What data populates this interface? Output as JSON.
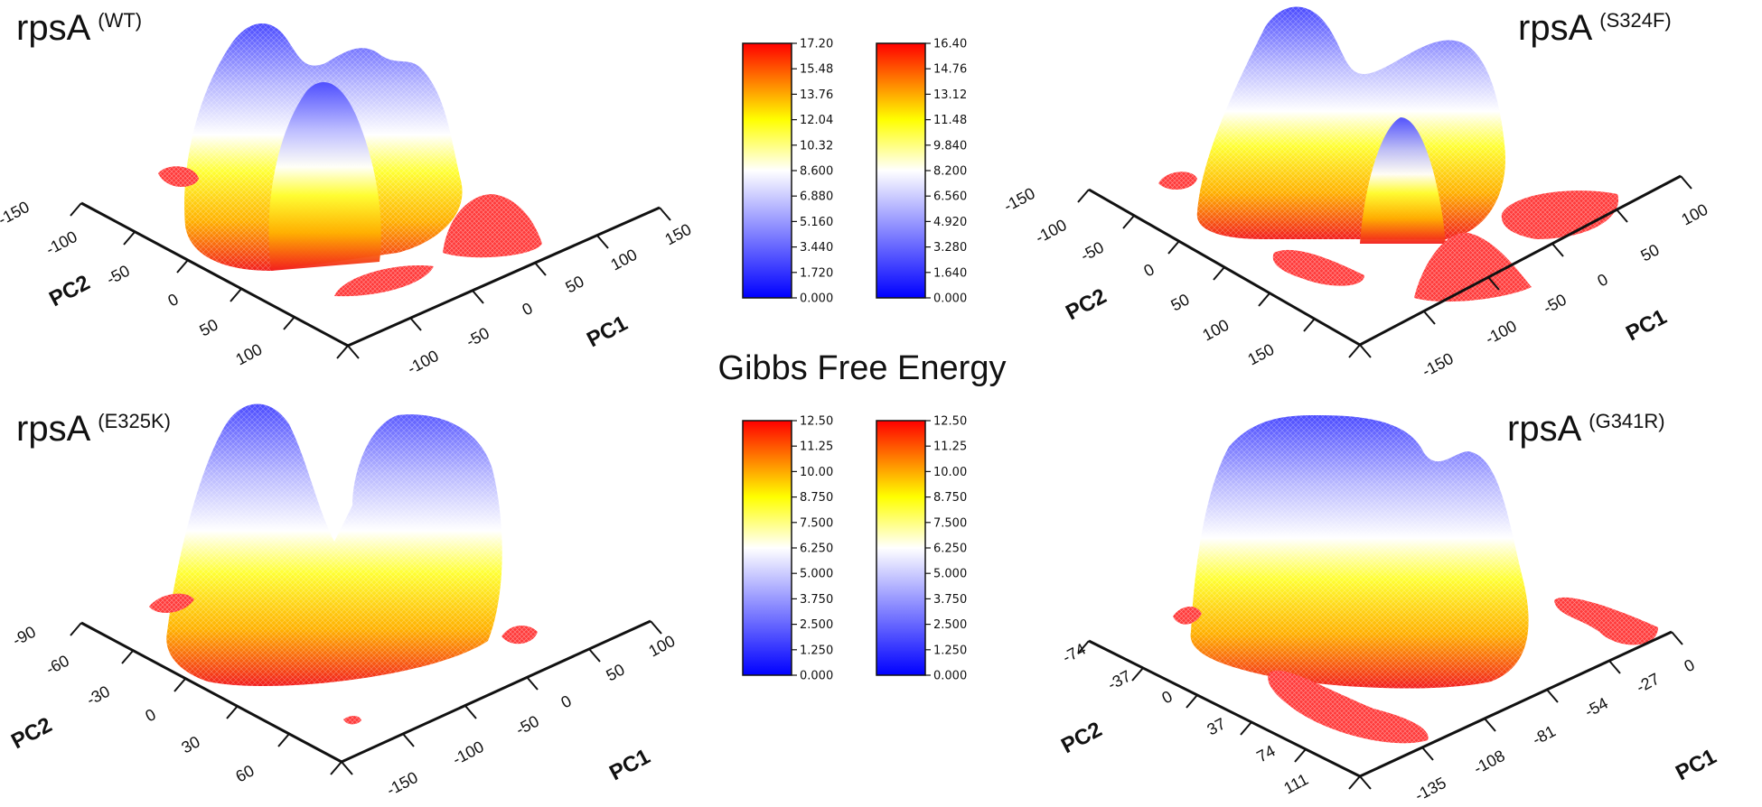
{
  "figure": {
    "center_title": "Gibbs Free Energy",
    "colors": {
      "low": "#0000ff",
      "mid_low": "#ffffff",
      "mid": "#ffff00",
      "high": "#ff0000",
      "axis": "#111111"
    }
  },
  "chart_data": [
    {
      "type": "surface-3d",
      "name": "rpsA",
      "sup": "(WT)",
      "xlabel": "PC1",
      "ylabel": "PC2",
      "x_ticks": [
        "-100",
        "-50",
        "0",
        "50",
        "100",
        "150"
      ],
      "y_ticks": [
        "-150",
        "-100",
        "-50",
        "0",
        "50",
        "100"
      ],
      "surface_peaks": [
        {
          "pc1": -60,
          "pc2": -90,
          "height": 17.2
        },
        {
          "pc1": 0,
          "pc2": -20,
          "height": 14.0
        },
        {
          "pc1": 60,
          "pc2": -60,
          "height": 13.5
        },
        {
          "pc1": 40,
          "pc2": 60,
          "height": 3.5
        }
      ]
    },
    {
      "type": "surface-3d",
      "name": "rpsA",
      "sup": "(S324F)",
      "xlabel": "PC1",
      "ylabel": "PC2",
      "x_ticks": [
        "-150",
        "-100",
        "-50",
        "0",
        "50",
        "100"
      ],
      "y_ticks": [
        "-150",
        "-100",
        "-50",
        "0",
        "50",
        "100",
        "150"
      ],
      "surface_peaks": [
        {
          "pc1": 0,
          "pc2": -100,
          "height": 16.4
        },
        {
          "pc1": 50,
          "pc2": -30,
          "height": 14.5
        },
        {
          "pc1": -20,
          "pc2": 0,
          "height": 12.0
        },
        {
          "pc1": -40,
          "pc2": 60,
          "height": 10.0
        }
      ]
    },
    {
      "type": "surface-3d",
      "name": "rpsA",
      "sup": "(E325K)",
      "xlabel": "PC1",
      "ylabel": "PC2",
      "x_ticks": [
        "-150",
        "-100",
        "-50",
        "0",
        "50",
        "100"
      ],
      "y_ticks": [
        "-90",
        "-60",
        "-30",
        "0",
        "30",
        "60"
      ],
      "surface_peaks": [
        {
          "pc1": -40,
          "pc2": -30,
          "height": 12.5
        },
        {
          "pc1": 30,
          "pc2": -60,
          "height": 12.0
        }
      ]
    },
    {
      "type": "surface-3d",
      "name": "rpsA",
      "sup": "(G341R)",
      "xlabel": "PC1",
      "ylabel": "PC2",
      "x_ticks": [
        "-135",
        "-108",
        "-81",
        "-54",
        "-27",
        "0"
      ],
      "y_ticks": [
        "-74",
        "-37",
        "0",
        "37",
        "74",
        "111"
      ],
      "surface_peaks": [
        {
          "pc1": -90,
          "pc2": -30,
          "height": 12.0
        },
        {
          "pc1": -40,
          "pc2": 30,
          "height": 12.5
        }
      ]
    }
  ],
  "colorbars": {
    "top_left": [
      "17.20",
      "15.48",
      "13.76",
      "12.04",
      "10.32",
      "8.600",
      "6.880",
      "5.160",
      "3.440",
      "1.720",
      "0.000"
    ],
    "top_right": [
      "16.40",
      "14.76",
      "13.12",
      "11.48",
      "9.840",
      "8.200",
      "6.560",
      "4.920",
      "3.280",
      "1.640",
      "0.000"
    ],
    "bottom_left": [
      "12.50",
      "11.25",
      "10.00",
      "8.750",
      "7.500",
      "6.250",
      "5.000",
      "3.750",
      "2.500",
      "1.250",
      "0.000"
    ],
    "bottom_right": [
      "12.50",
      "11.25",
      "10.00",
      "8.750",
      "7.500",
      "6.250",
      "5.000",
      "3.750",
      "2.500",
      "1.250",
      "0.000"
    ]
  }
}
